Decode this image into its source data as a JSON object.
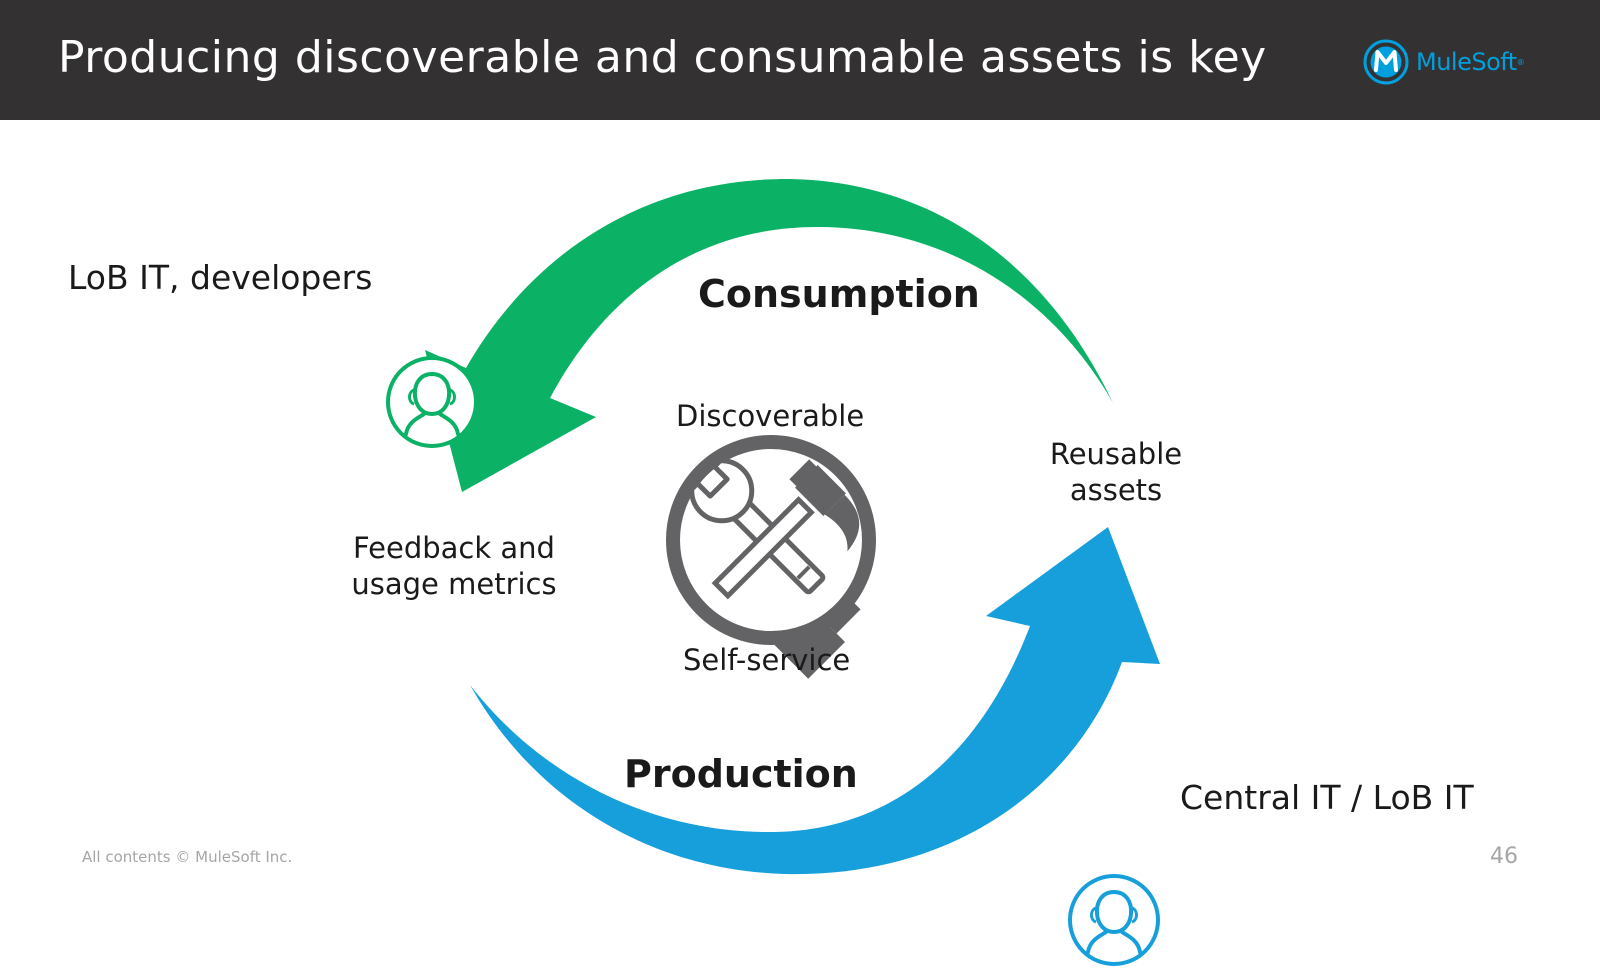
{
  "header": {
    "title": "Producing discoverable and consumable assets is key",
    "logo_text": "MuleSoft",
    "logo_tm": "®"
  },
  "diagram": {
    "consumption_label": "Consumption",
    "production_label": "Production",
    "center_top_label": "Discoverable",
    "center_bottom_label": "Self-service",
    "reusable_line1": "Reusable",
    "reusable_line2": "assets",
    "feedback_line1": "Feedback and",
    "feedback_line2": "usage metrics",
    "consumer_role": "LoB IT, developers",
    "producer_role": "Central IT / LoB IT",
    "consumption_color": "#0bb266",
    "production_color": "#169fdb",
    "magnifier_color": "#636366",
    "icons": [
      "user-icon",
      "magnifier-icon",
      "wrench-icon",
      "hammer-icon"
    ]
  },
  "footer": {
    "copyright": "All contents © MuleSoft Inc.",
    "page_number": "46"
  }
}
